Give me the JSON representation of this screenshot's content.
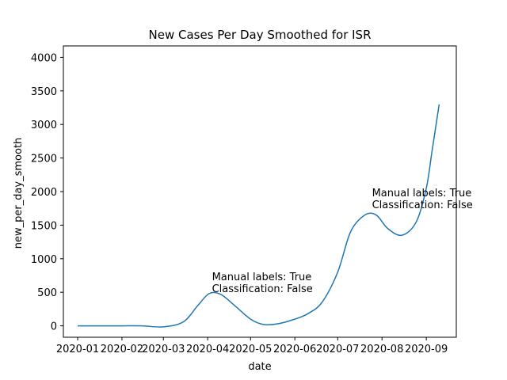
{
  "chart_data": {
    "type": "line",
    "title": "New Cases Per Day Smoothed for ISR",
    "xlabel": "date",
    "ylabel": "new_per_day_smooth",
    "x_ticks": [
      "2020-01",
      "2020-02",
      "2020-03",
      "2020-04",
      "2020-05",
      "2020-06",
      "2020-07",
      "2020-08",
      "2020-09"
    ],
    "y_ticks": [
      "0",
      "500",
      "1000",
      "1500",
      "2000",
      "2500",
      "3000",
      "3500",
      "4000"
    ],
    "xlim": [
      "2019-12-22",
      "2020-09-22"
    ],
    "ylim": [
      -170,
      4170
    ],
    "grid": false,
    "color": "#1f77b4",
    "series": [
      {
        "x": [
          "2020-01-01",
          "2020-01-15",
          "2020-02-01",
          "2020-02-15",
          "2020-03-01",
          "2020-03-15",
          "2020-03-25",
          "2020-04-02",
          "2020-04-10",
          "2020-04-20",
          "2020-05-01",
          "2020-05-10",
          "2020-05-20",
          "2020-06-01",
          "2020-06-10",
          "2020-06-20",
          "2020-07-01",
          "2020-07-10",
          "2020-07-20",
          "2020-07-28",
          "2020-08-05",
          "2020-08-15",
          "2020-08-25",
          "2020-09-01",
          "2020-09-05",
          "2020-09-10"
        ],
        "y": [
          0,
          0,
          0,
          0,
          -15,
          60,
          300,
          480,
          470,
          300,
          100,
          20,
          30,
          100,
          180,
          350,
          800,
          1400,
          1650,
          1650,
          1450,
          1350,
          1550,
          2050,
          2600,
          3300
        ]
      }
    ],
    "annotations": [
      {
        "x": "2020-04-04",
        "y": 500,
        "lines": [
          "Manual labels: True",
          "Classification: False"
        ]
      },
      {
        "x": "2020-07-25",
        "y": 1750,
        "lines": [
          "Manual labels: True",
          "Classification: False"
        ]
      }
    ]
  }
}
